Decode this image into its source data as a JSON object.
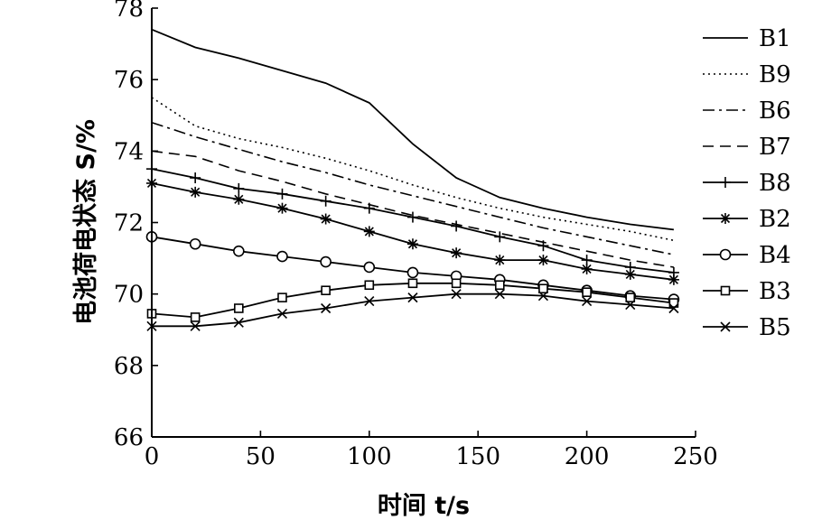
{
  "chart_data": {
    "type": "line",
    "xlabel": "时间 t/s",
    "ylabel": "电池荷电状态 S/%",
    "xlim": [
      0,
      250
    ],
    "ylim": [
      66,
      78
    ],
    "x_ticks": [
      "0",
      "50",
      "100",
      "150",
      "200",
      "250"
    ],
    "y_ticks": [
      "66",
      "68",
      "70",
      "72",
      "74",
      "76",
      "78"
    ],
    "grid": false,
    "legend_position": "right",
    "x": [
      0,
      20,
      40,
      60,
      80,
      100,
      120,
      140,
      160,
      180,
      200,
      220,
      240
    ],
    "series": [
      {
        "name": "B1",
        "style": "solid",
        "marker": "none",
        "values": [
          77.4,
          76.9,
          76.6,
          76.25,
          75.9,
          75.35,
          74.2,
          73.25,
          72.7,
          72.4,
          72.15,
          71.95,
          71.8
        ]
      },
      {
        "name": "B9",
        "style": "dotted",
        "marker": "none",
        "values": [
          75.5,
          74.7,
          74.35,
          74.1,
          73.8,
          73.45,
          73.05,
          72.7,
          72.4,
          72.15,
          71.95,
          71.75,
          71.5
        ]
      },
      {
        "name": "B6",
        "style": "dashdot",
        "marker": "none",
        "values": [
          74.8,
          74.4,
          74.05,
          73.7,
          73.4,
          73.05,
          72.75,
          72.45,
          72.15,
          71.85,
          71.6,
          71.35,
          71.1
        ]
      },
      {
        "name": "B7",
        "style": "dashed",
        "marker": "none",
        "values": [
          74.0,
          73.85,
          73.45,
          73.15,
          72.8,
          72.5,
          72.2,
          71.95,
          71.7,
          71.45,
          71.2,
          70.95,
          70.75
        ]
      },
      {
        "name": "B8",
        "style": "solid",
        "marker": "plus",
        "values": [
          73.5,
          73.25,
          72.95,
          72.8,
          72.6,
          72.4,
          72.15,
          71.9,
          71.6,
          71.35,
          70.95,
          70.75,
          70.6
        ]
      },
      {
        "name": "B2",
        "style": "solid",
        "marker": "star",
        "values": [
          73.1,
          72.85,
          72.65,
          72.4,
          72.1,
          71.75,
          71.4,
          71.15,
          70.95,
          70.95,
          70.7,
          70.55,
          70.4
        ]
      },
      {
        "name": "B4",
        "style": "solid",
        "marker": "circle",
        "values": [
          71.6,
          71.4,
          71.2,
          71.05,
          70.9,
          70.75,
          70.6,
          70.5,
          70.4,
          70.25,
          70.1,
          69.95,
          69.85
        ]
      },
      {
        "name": "B3",
        "style": "solid",
        "marker": "square",
        "values": [
          69.45,
          69.35,
          69.6,
          69.9,
          70.1,
          70.25,
          70.3,
          70.3,
          70.25,
          70.15,
          70.05,
          69.9,
          69.75
        ]
      },
      {
        "name": "B5",
        "style": "solid",
        "marker": "x",
        "values": [
          69.1,
          69.1,
          69.2,
          69.45,
          69.6,
          69.8,
          69.9,
          70.0,
          70.0,
          69.95,
          69.8,
          69.7,
          69.6
        ]
      }
    ]
  },
  "colors": {
    "line": "#000000",
    "background": "#ffffff"
  }
}
